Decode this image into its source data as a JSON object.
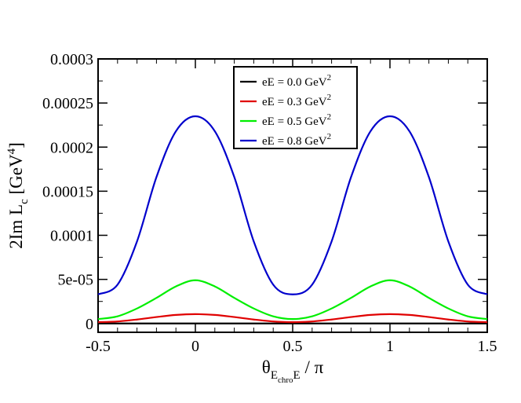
{
  "chart_data": {
    "type": "line",
    "xlabel": {
      "main": "θ",
      "sub": "E",
      "subsub": "chro",
      "subtail": "E",
      "tail": " / π"
    },
    "ylabel": {
      "main": "2Im L",
      "sub": "c",
      "unit_pre": " [GeV",
      "unit_sup": "4",
      "unit_post": "]"
    },
    "xlim": [
      -0.5,
      1.5
    ],
    "ylim": [
      -1e-05,
      0.0003
    ],
    "xticks": [
      -0.5,
      0,
      0.5,
      1,
      1.5
    ],
    "xtick_labels": [
      "-0.5",
      "0",
      "0.5",
      "1",
      "1.5"
    ],
    "yticks": [
      0,
      5e-05,
      0.0001,
      0.00015,
      0.0002,
      0.00025,
      0.0003
    ],
    "ytick_labels": [
      "0",
      "5e-05",
      "0.0001",
      "0.00015",
      "0.0002",
      "0.00025",
      "0.0003"
    ],
    "grid": false,
    "legend_position": "top-center",
    "x": [
      -0.5,
      -0.4,
      -0.3,
      -0.2,
      -0.1,
      0,
      0.1,
      0.2,
      0.3,
      0.4,
      0.5,
      0.6,
      0.7,
      0.8,
      0.9,
      1.0,
      1.1,
      1.2,
      1.3,
      1.4,
      1.5
    ],
    "series": [
      {
        "name": "eE = 0.0 GeV",
        "name_sup": "2",
        "color": "#000000",
        "values": [
          0,
          0,
          0,
          0,
          0,
          0,
          0,
          0,
          0,
          0,
          0,
          0,
          0,
          0,
          0,
          0,
          0,
          0,
          0,
          0,
          0
        ]
      },
      {
        "name": "eE = 0.3 GeV",
        "name_sup": "2",
        "color": "#e00000",
        "values": [
          1.5e-06,
          2.3e-06,
          4.5e-06,
          7.3e-06,
          9.7e-06,
          1.06e-05,
          9.7e-06,
          7.3e-06,
          4.5e-06,
          2.3e-06,
          1.5e-06,
          2.3e-06,
          4.5e-06,
          7.3e-06,
          9.7e-06,
          1.06e-05,
          9.7e-06,
          7.3e-06,
          4.5e-06,
          2.3e-06,
          1.5e-06
        ]
      },
      {
        "name": "eE = 0.5 GeV",
        "name_sup": "2",
        "color": "#00ee00",
        "values": [
          5e-06,
          8.1e-06,
          1.7e-05,
          2.9e-05,
          4.2e-05,
          4.9e-05,
          4.2e-05,
          2.9e-05,
          1.7e-05,
          8.1e-06,
          5e-06,
          8.1e-06,
          1.7e-05,
          2.9e-05,
          4.2e-05,
          4.9e-05,
          4.2e-05,
          2.9e-05,
          1.7e-05,
          8.1e-06,
          5e-06
        ]
      },
      {
        "name": "eE = 0.8 GeV",
        "name_sup": "2",
        "color": "#0000cc",
        "values": [
          3.3e-05,
          4.4e-05,
          9.3e-05,
          0.000166,
          0.000218,
          0.000235,
          0.000218,
          0.000166,
          9.3e-05,
          4.4e-05,
          3.3e-05,
          4.4e-05,
          9.3e-05,
          0.000166,
          0.000218,
          0.000235,
          0.000218,
          0.000166,
          9.3e-05,
          4.4e-05,
          3.3e-05
        ]
      }
    ]
  }
}
